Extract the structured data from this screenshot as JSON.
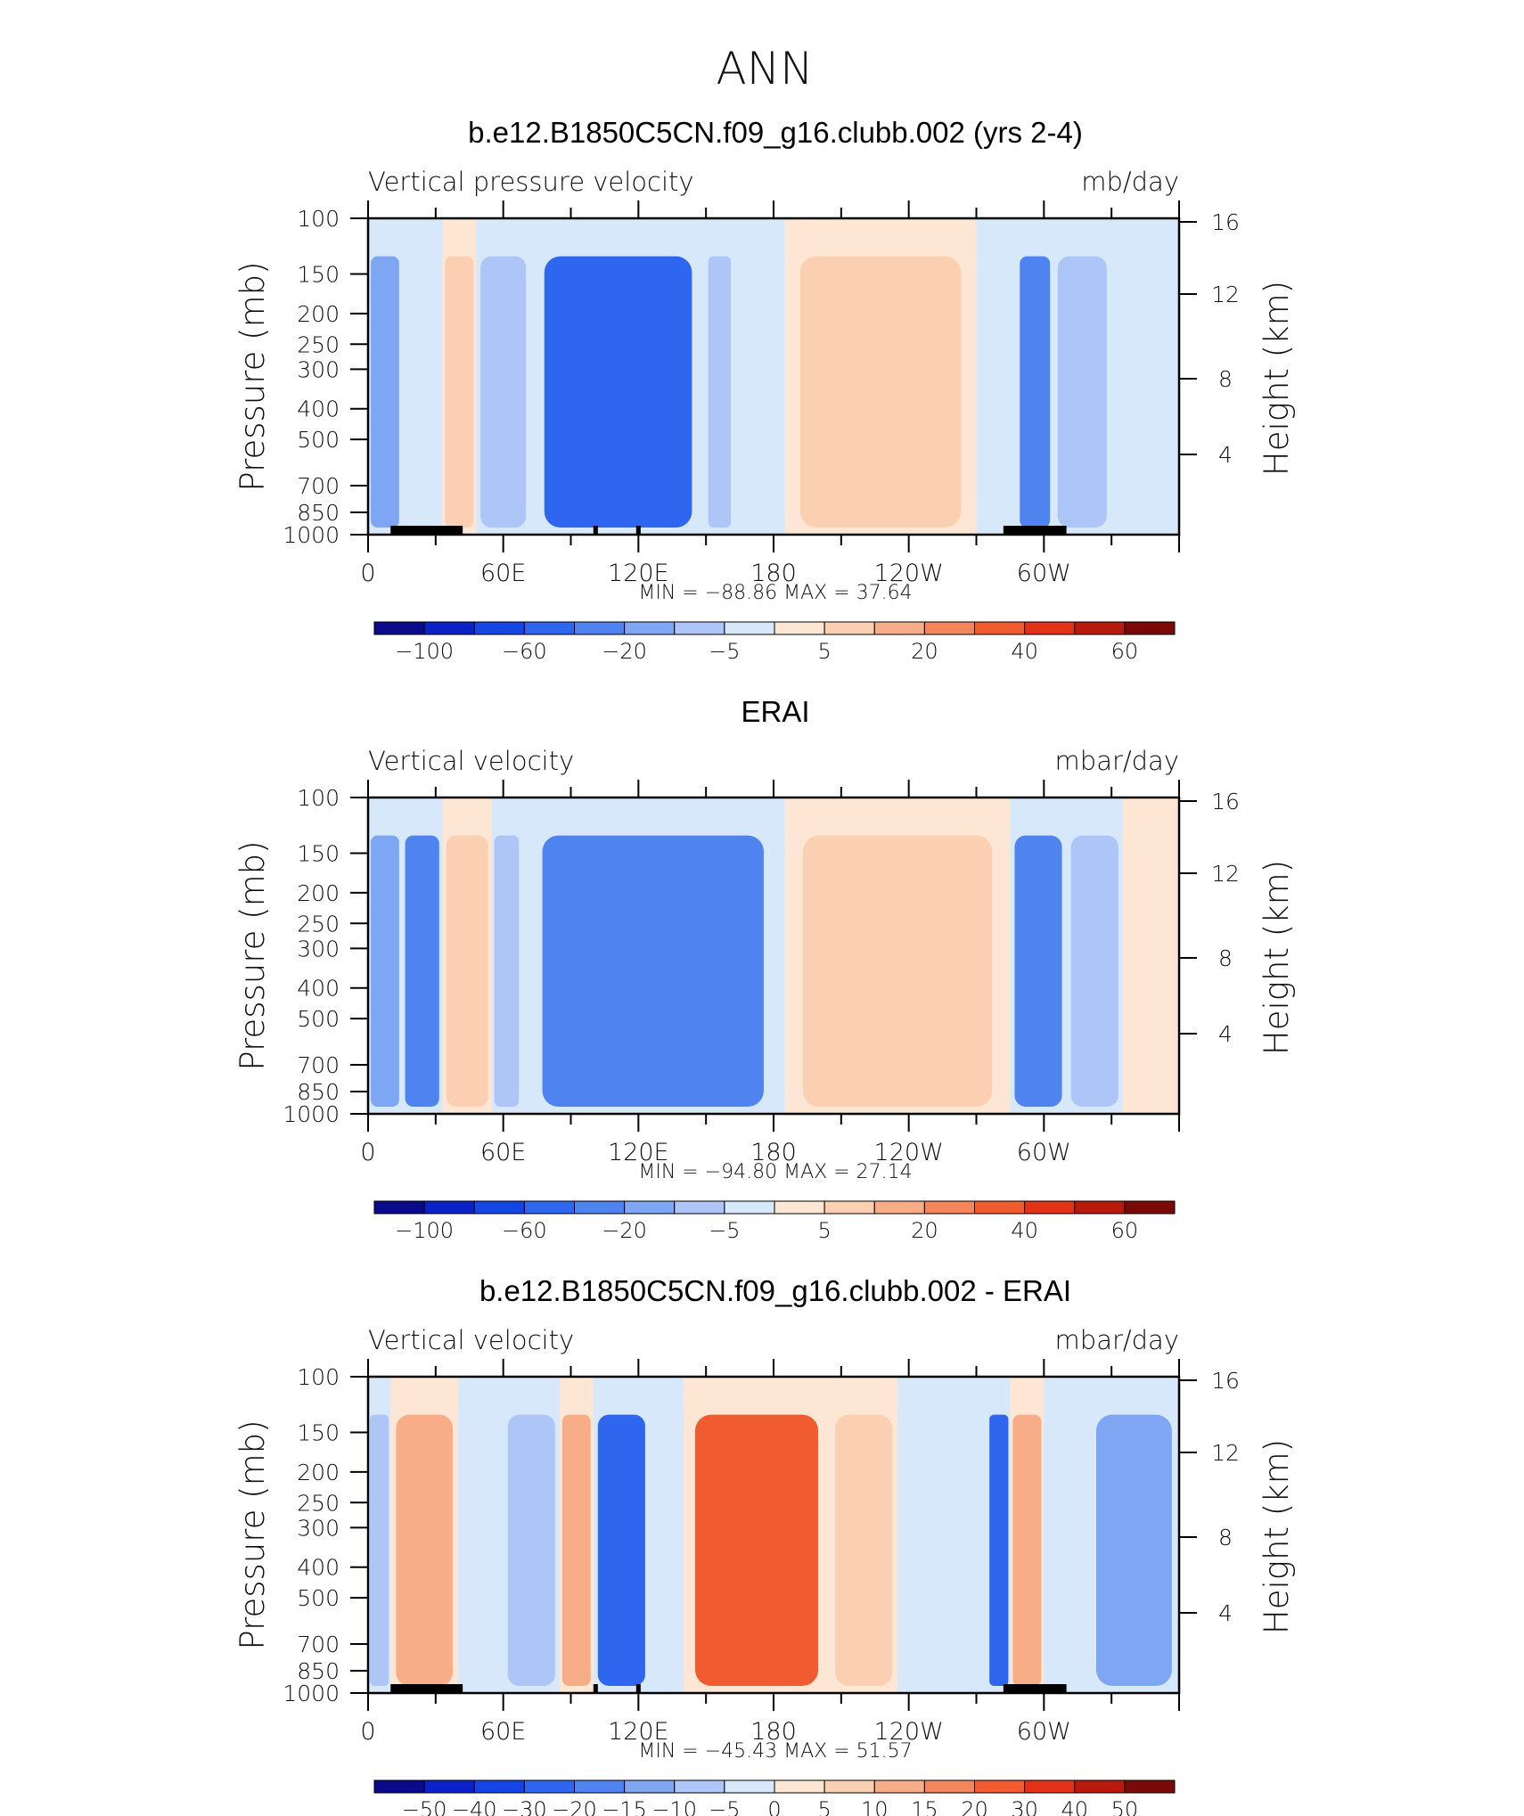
{
  "figure_title": "ANN",
  "colors": {
    "negative": [
      "#0a0a8a",
      "#0b22c8",
      "#1446e6",
      "#2f66f0",
      "#4f84f0",
      "#7fa6f2",
      "#adc6f7",
      "#d8e8fb"
    ],
    "positive": [
      "#fde7d4",
      "#fbcfb1",
      "#f7ad87",
      "#f4865c",
      "#f05c30",
      "#e23218",
      "#b81b0c",
      "#7a0a08"
    ],
    "topography": "#000000"
  },
  "chart_data": [
    {
      "type": "heatmap",
      "title": "b.e12.B1850C5CN.f09_g16.clubb.002 (yrs 2-4)",
      "variable": "Vertical pressure velocity",
      "units": "mb/day",
      "ylabel": "Pressure (mb)",
      "y2label": "Height (km)",
      "x_ticks": [
        "0",
        "60E",
        "120E",
        "180",
        "120W",
        "60W"
      ],
      "y_ticks": [
        "100",
        "150",
        "200",
        "250",
        "300",
        "400",
        "500",
        "700",
        "850",
        "1000"
      ],
      "y2_ticks": [
        "16",
        "12",
        "8",
        "4"
      ],
      "stats": "MIN =  −88.86   MAX =   37.64",
      "colorbar_labels": [
        "−100",
        "−60",
        "−20",
        "−5",
        "5",
        "20",
        "40",
        "60"
      ],
      "cells": [
        {
          "lon0": 0,
          "lon1": 15,
          "level": -3,
          "v": -35
        },
        {
          "lon0": 15,
          "lon1": 33,
          "level": -1,
          "v": -10
        },
        {
          "lon0": 33,
          "lon1": 48,
          "level": 2,
          "v": 25
        },
        {
          "lon0": 48,
          "lon1": 72,
          "level": -2,
          "v": -20
        },
        {
          "lon0": 72,
          "lon1": 150,
          "level": -5,
          "v": -60
        },
        {
          "lon0": 150,
          "lon1": 162,
          "level": -2,
          "v": -15
        },
        {
          "lon0": 162,
          "lon1": 185,
          "level": -1,
          "v": -5
        },
        {
          "lon0": 185,
          "lon1": 270,
          "level": 2,
          "v": 20
        },
        {
          "lon0": 270,
          "lon1": 288,
          "level": -1,
          "v": -5
        },
        {
          "lon0": 288,
          "lon1": 304,
          "level": -4,
          "v": -40
        },
        {
          "lon0": 304,
          "lon1": 330,
          "level": -2,
          "v": -15
        },
        {
          "lon0": 330,
          "lon1": 360,
          "level": -1,
          "v": -5
        }
      ],
      "topography_lon": [
        [
          10,
          42
        ],
        [
          100,
          102
        ],
        [
          119,
          121
        ],
        [
          282,
          310
        ]
      ]
    },
    {
      "type": "heatmap",
      "title": "ERAI",
      "variable": "Vertical velocity",
      "units": "mbar/day",
      "ylabel": "Pressure (mb)",
      "y2label": "Height (km)",
      "x_ticks": [
        "0",
        "60E",
        "120E",
        "180",
        "120W",
        "60W"
      ],
      "y_ticks": [
        "100",
        "150",
        "200",
        "250",
        "300",
        "400",
        "500",
        "700",
        "850",
        "1000"
      ],
      "y2_ticks": [
        "16",
        "12",
        "8",
        "4"
      ],
      "stats": "MIN =  −94.80   MAX =   27.14",
      "colorbar_labels": [
        "−100",
        "−60",
        "−20",
        "−5",
        "5",
        "20",
        "40",
        "60"
      ],
      "cells": [
        {
          "lon0": 0,
          "lon1": 15,
          "level": -3,
          "v": -30
        },
        {
          "lon0": 15,
          "lon1": 33,
          "level": -4,
          "v": -40
        },
        {
          "lon0": 33,
          "lon1": 55,
          "level": 2,
          "v": 15
        },
        {
          "lon0": 55,
          "lon1": 68,
          "level": -2,
          "v": -15
        },
        {
          "lon0": 68,
          "lon1": 185,
          "level": -4,
          "v": -45
        },
        {
          "lon0": 185,
          "lon1": 285,
          "level": 2,
          "v": 15
        },
        {
          "lon0": 285,
          "lon1": 310,
          "level": -4,
          "v": -40
        },
        {
          "lon0": 310,
          "lon1": 335,
          "level": -2,
          "v": -15
        },
        {
          "lon0": 335,
          "lon1": 360,
          "level": 1,
          "v": 5
        }
      ],
      "topography_lon": []
    },
    {
      "type": "heatmap",
      "title": "b.e12.B1850C5CN.f09_g16.clubb.002 - ERAI",
      "variable": "Vertical velocity",
      "units": "mbar/day",
      "ylabel": "Pressure (mb)",
      "y2label": "Height (km)",
      "x_ticks": [
        "0",
        "60E",
        "120E",
        "180",
        "120W",
        "60W"
      ],
      "y_ticks": [
        "100",
        "150",
        "200",
        "250",
        "300",
        "400",
        "500",
        "700",
        "850",
        "1000"
      ],
      "y2_ticks": [
        "16",
        "12",
        "8",
        "4"
      ],
      "stats": "MIN =  −45.43   MAX =   51.57",
      "colorbar_labels": [
        "−50",
        "−40",
        "−30",
        "−20",
        "−15",
        "−10",
        "−5",
        "0",
        "5",
        "10",
        "15",
        "20",
        "30",
        "40",
        "50"
      ],
      "cells": [
        {
          "lon0": 0,
          "lon1": 10,
          "level": -2,
          "v": -15
        },
        {
          "lon0": 10,
          "lon1": 40,
          "level": 3,
          "v": 15
        },
        {
          "lon0": 40,
          "lon1": 60,
          "level": -1,
          "v": -5
        },
        {
          "lon0": 60,
          "lon1": 85,
          "level": -2,
          "v": -10
        },
        {
          "lon0": 85,
          "lon1": 100,
          "level": 3,
          "v": 15
        },
        {
          "lon0": 100,
          "lon1": 125,
          "level": -5,
          "v": -30
        },
        {
          "lon0": 125,
          "lon1": 140,
          "level": -1,
          "v": -5
        },
        {
          "lon0": 140,
          "lon1": 205,
          "level": 5,
          "v": 30
        },
        {
          "lon0": 205,
          "lon1": 235,
          "level": 2,
          "v": 10
        },
        {
          "lon0": 235,
          "lon1": 275,
          "level": -1,
          "v": -5
        },
        {
          "lon0": 275,
          "lon1": 285,
          "level": -5,
          "v": -30
        },
        {
          "lon0": 285,
          "lon1": 300,
          "level": 3,
          "v": 15
        },
        {
          "lon0": 300,
          "lon1": 320,
          "level": -1,
          "v": -5
        },
        {
          "lon0": 320,
          "lon1": 360,
          "level": -3,
          "v": -15
        }
      ],
      "topography_lon": [
        [
          10,
          42
        ],
        [
          100,
          102
        ],
        [
          119,
          121
        ],
        [
          282,
          310
        ]
      ]
    }
  ]
}
